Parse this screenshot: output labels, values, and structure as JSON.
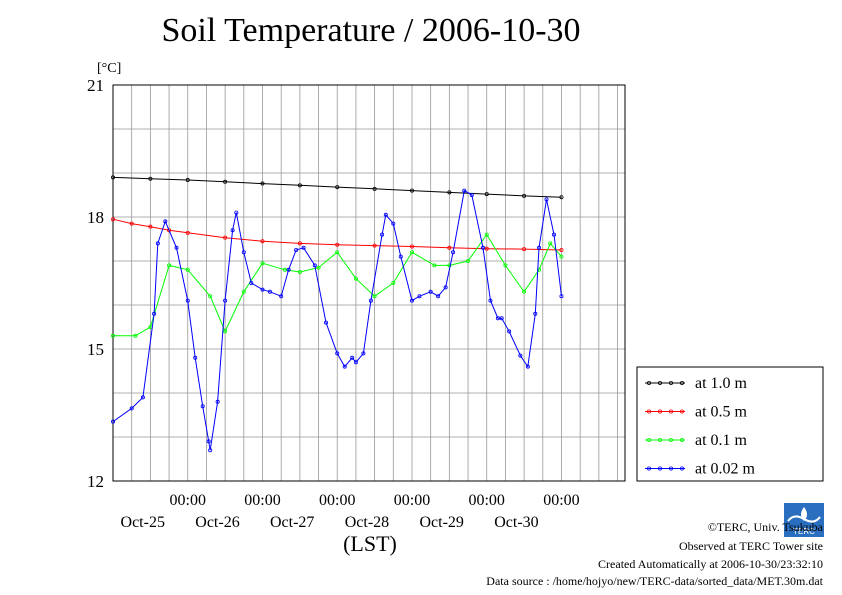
{
  "title": "Soil Temperature / 2006-10-30",
  "chart_data": {
    "type": "line",
    "ylabel": "[°C]",
    "xlabel": "(LST)",
    "ylim": [
      12,
      21
    ],
    "yticks": [
      12,
      15,
      18,
      21
    ],
    "xlim": [
      0,
      6
    ],
    "day_ticks": [
      {
        "x": 1,
        "time": "00:00",
        "date": "Oct-25"
      },
      {
        "x": 2,
        "time": "00:00",
        "date": "Oct-26"
      },
      {
        "x": 3,
        "time": "00:00",
        "date": "Oct-27"
      },
      {
        "x": 4,
        "time": "00:00",
        "date": "Oct-28"
      },
      {
        "x": 5,
        "time": "00:00",
        "date": "Oct-29"
      },
      {
        "x": 6,
        "time": "00:00",
        "date": "Oct-30"
      }
    ],
    "grid": true,
    "legend_position": "right",
    "series": [
      {
        "name": "at 1.0 m",
        "color": "#000000",
        "x": [
          0,
          0.5,
          1,
          1.5,
          2,
          2.5,
          3,
          3.5,
          4,
          4.5,
          5,
          5.5,
          6
        ],
        "y": [
          18.9,
          18.87,
          18.84,
          18.8,
          18.76,
          18.72,
          18.68,
          18.64,
          18.6,
          18.56,
          18.52,
          18.48,
          18.45
        ]
      },
      {
        "name": "at 0.5 m",
        "color": "#ff0000",
        "x": [
          0,
          0.25,
          0.5,
          0.75,
          1,
          1.5,
          2,
          2.5,
          3,
          3.5,
          4,
          4.5,
          5,
          5.5,
          6
        ],
        "y": [
          17.95,
          17.85,
          17.78,
          17.7,
          17.64,
          17.53,
          17.45,
          17.4,
          17.37,
          17.35,
          17.33,
          17.3,
          17.28,
          17.27,
          17.25
        ]
      },
      {
        "name": "at 0.1 m",
        "color": "#00ff00",
        "x": [
          0,
          0.3,
          0.5,
          0.75,
          1.0,
          1.3,
          1.5,
          1.75,
          2.0,
          2.3,
          2.5,
          2.75,
          3.0,
          3.25,
          3.5,
          3.75,
          4.0,
          4.3,
          4.5,
          4.75,
          5.0,
          5.25,
          5.5,
          5.7,
          5.85,
          6.0
        ],
        "y": [
          15.3,
          15.3,
          15.5,
          16.9,
          16.8,
          16.2,
          15.4,
          16.3,
          16.95,
          16.8,
          16.75,
          16.85,
          17.2,
          16.6,
          16.2,
          16.5,
          17.2,
          16.9,
          16.9,
          17.0,
          17.6,
          16.9,
          16.3,
          16.8,
          17.4,
          17.1
        ]
      },
      {
        "name": "at 0.02 m",
        "color": "#0000ff",
        "x": [
          0,
          0.25,
          0.4,
          0.55,
          0.6,
          0.7,
          0.85,
          1.0,
          1.1,
          1.2,
          1.28,
          1.3,
          1.4,
          1.5,
          1.6,
          1.65,
          1.75,
          1.85,
          2.0,
          2.1,
          2.25,
          2.35,
          2.45,
          2.55,
          2.7,
          2.85,
          3.0,
          3.1,
          3.2,
          3.25,
          3.35,
          3.45,
          3.6,
          3.65,
          3.75,
          3.85,
          4.0,
          4.1,
          4.25,
          4.35,
          4.45,
          4.55,
          4.7,
          4.8,
          4.95,
          5.05,
          5.15,
          5.2,
          5.3,
          5.45,
          5.55,
          5.65,
          5.7,
          5.8,
          5.9,
          6.0
        ],
        "y": [
          13.35,
          13.65,
          13.9,
          15.8,
          17.4,
          17.9,
          17.3,
          16.1,
          14.8,
          13.7,
          12.9,
          12.7,
          13.8,
          16.1,
          17.7,
          18.1,
          17.2,
          16.5,
          16.35,
          16.3,
          16.2,
          16.8,
          17.25,
          17.3,
          16.9,
          15.6,
          14.9,
          14.6,
          14.8,
          14.7,
          14.9,
          16.1,
          17.6,
          18.05,
          17.85,
          17.1,
          16.1,
          16.2,
          16.3,
          16.2,
          16.4,
          17.2,
          18.6,
          18.5,
          17.3,
          16.1,
          15.7,
          15.7,
          15.4,
          14.85,
          14.6,
          15.8,
          17.3,
          18.4,
          17.6,
          16.2
        ]
      }
    ]
  },
  "footer": {
    "credit": "©TERC, Univ. Tsukuba",
    "observed": "Observed at TERC Tower site",
    "created": "Created Automatically at 2006-10-30/23:32:10",
    "source": "Data source : /home/hojyo/new/TERC-data/sorted_data/MET.30m.dat",
    "logo_text": "TERC"
  }
}
